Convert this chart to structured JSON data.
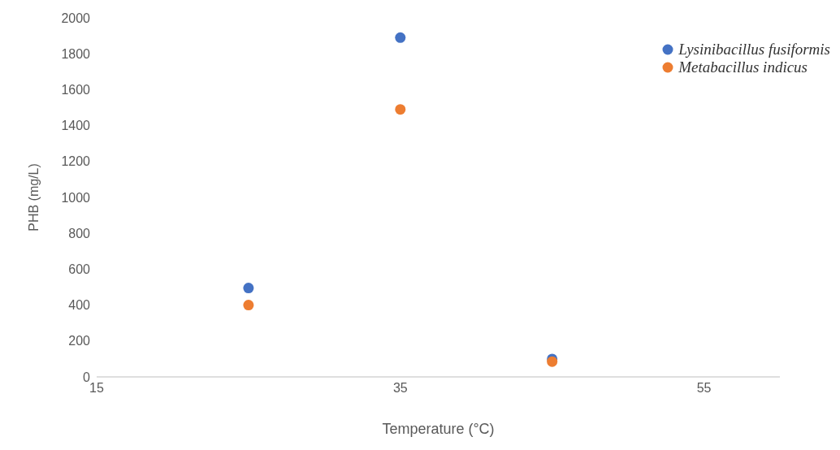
{
  "chart_data": {
    "type": "scatter",
    "xlabel": "Temperature (°C)",
    "ylabel": "PHB (mg/L)",
    "x": [
      25,
      35,
      45
    ],
    "series": [
      {
        "name": "Lysinibacillus fusiformis",
        "color": "#4472c4",
        "values": [
          495,
          1890,
          100
        ]
      },
      {
        "name": "Metabacillus indicus",
        "color": "#ed7d31",
        "values": [
          400,
          1490,
          85
        ]
      }
    ],
    "xlim": [
      15,
      60
    ],
    "xticks": [
      15,
      35,
      55
    ],
    "ylim": [
      0,
      2000
    ],
    "yticks": [
      0,
      200,
      400,
      600,
      800,
      1000,
      1200,
      1400,
      1600,
      1800,
      2000
    ],
    "grid": false,
    "legend": "top right",
    "marker": "circle"
  }
}
